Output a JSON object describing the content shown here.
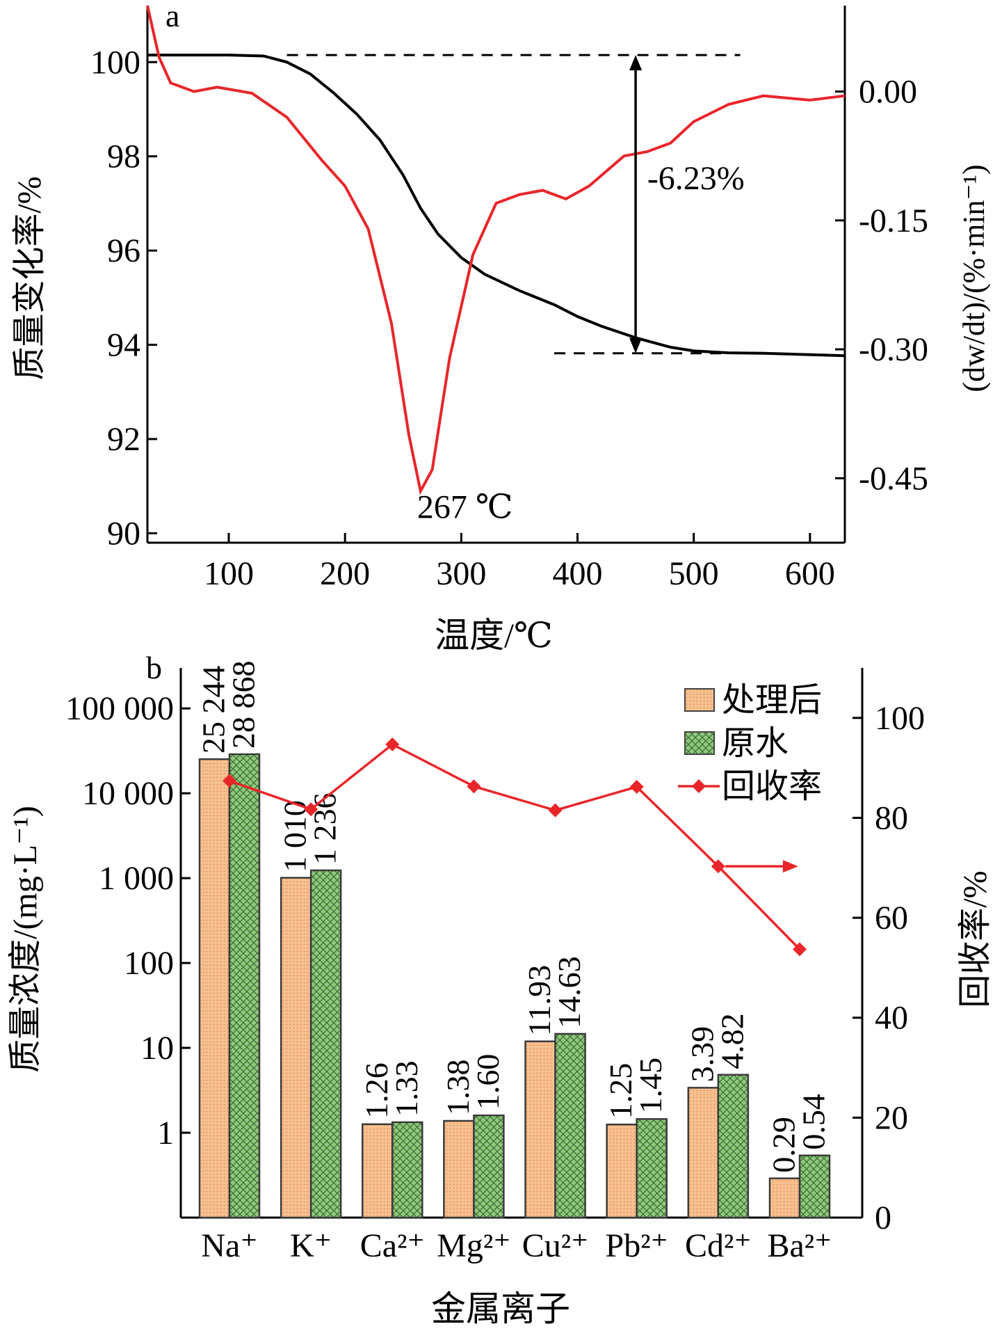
{
  "chart_data": [
    {
      "panel_label": "a",
      "type": "line",
      "xlabel": "温度/℃",
      "ylabel_left": "质量变化率/%",
      "ylabel_right": "(dw/dt)/(%·min⁻¹)",
      "xlim": [
        30,
        630
      ],
      "ylim_left": [
        89.8,
        101.2
      ],
      "ylim_right": [
        -0.525,
        0.1
      ],
      "x_ticks": [
        100,
        200,
        300,
        400,
        500,
        600
      ],
      "y_ticks_left": [
        90,
        92,
        94,
        96,
        98,
        100
      ],
      "y_ticks_right": [
        0.0,
        -0.15,
        -0.3,
        -0.45
      ],
      "y_tick_labels_right": [
        "0.00",
        "-0.15",
        "-0.30",
        "-0.45"
      ],
      "series": [
        {
          "axis": "left",
          "color": "#000000",
          "points": [
            [
              30,
              100.15
            ],
            [
              60,
              100.15
            ],
            [
              100,
              100.15
            ],
            [
              130,
              100.13
            ],
            [
              150,
              100.0
            ],
            [
              170,
              99.75
            ],
            [
              190,
              99.35
            ],
            [
              210,
              98.9
            ],
            [
              230,
              98.35
            ],
            [
              250,
              97.6
            ],
            [
              265,
              96.9
            ],
            [
              280,
              96.35
            ],
            [
              300,
              95.85
            ],
            [
              320,
              95.5
            ],
            [
              350,
              95.15
            ],
            [
              380,
              94.85
            ],
            [
              400,
              94.6
            ],
            [
              420,
              94.4
            ],
            [
              450,
              94.15
            ],
            [
              480,
              93.95
            ],
            [
              500,
              93.87
            ],
            [
              530,
              93.83
            ],
            [
              560,
              93.82
            ],
            [
              600,
              93.79
            ],
            [
              630,
              93.77
            ]
          ]
        },
        {
          "axis": "right",
          "color": "#e8262a",
          "points": [
            [
              30,
              0.1
            ],
            [
              40,
              0.04
            ],
            [
              50,
              0.01
            ],
            [
              70,
              0.0
            ],
            [
              90,
              0.005
            ],
            [
              120,
              -0.002
            ],
            [
              150,
              -0.03
            ],
            [
              180,
              -0.08
            ],
            [
              200,
              -0.11
            ],
            [
              220,
              -0.16
            ],
            [
              240,
              -0.27
            ],
            [
              255,
              -0.4
            ],
            [
              265,
              -0.465
            ],
            [
              275,
              -0.44
            ],
            [
              290,
              -0.31
            ],
            [
              310,
              -0.19
            ],
            [
              330,
              -0.13
            ],
            [
              350,
              -0.12
            ],
            [
              370,
              -0.115
            ],
            [
              390,
              -0.125
            ],
            [
              410,
              -0.11
            ],
            [
              440,
              -0.075
            ],
            [
              460,
              -0.07
            ],
            [
              480,
              -0.06
            ],
            [
              500,
              -0.035
            ],
            [
              530,
              -0.015
            ],
            [
              560,
              -0.005
            ],
            [
              600,
              -0.01
            ],
            [
              630,
              -0.005
            ]
          ]
        }
      ],
      "reference_lines": [
        {
          "axis": "left",
          "y": 100.15,
          "x_from": 150,
          "x_to": 540
        },
        {
          "axis": "left",
          "y": 93.82,
          "x_from": 380,
          "x_to": 530
        }
      ],
      "arrow": {
        "x": 450,
        "y_from": 100.15,
        "y_to": 93.82
      },
      "annotations": [
        {
          "id": "mass_loss",
          "text": "-6.23%",
          "x": 460,
          "y": 97.3,
          "axis": "left"
        },
        {
          "id": "peak_temp",
          "text": "267 ℃",
          "x": 265,
          "y": 90.5,
          "axis": "left"
        }
      ]
    },
    {
      "panel_label": "b",
      "type": "bar",
      "xlabel": "金属离子",
      "ylabel_left": "质量浓度/(mg·L⁻¹)",
      "ylabel_right": "回收率/%",
      "y_scale_left": "log",
      "ylim_left": [
        0.1,
        300000
      ],
      "ylim_right": [
        0,
        110
      ],
      "y_ticks_left": [
        1,
        10,
        100,
        1000,
        10000,
        100000
      ],
      "y_tick_labels_left": [
        "1",
        "10",
        "100",
        "1 000",
        "10 000",
        "100 000"
      ],
      "y_ticks_right": [
        0,
        20,
        40,
        60,
        80,
        100
      ],
      "categories": [
        "Na⁺",
        "K⁺",
        "Ca²⁺",
        "Mg²⁺",
        "Cu²⁺",
        "Pb²⁺",
        "Cd²⁺",
        "Ba²⁺"
      ],
      "series": [
        {
          "name": "处理后",
          "kind": "bar",
          "color": "#f7c08e",
          "values": [
            25244,
            1010,
            1.26,
            1.38,
            11.93,
            1.25,
            3.39,
            0.29
          ],
          "value_labels": [
            "25 244",
            "1 010",
            "1.26",
            "1.38",
            "11.93",
            "1.25",
            "3.39",
            "0.29"
          ]
        },
        {
          "name": "原水",
          "kind": "bar",
          "color": "#8ec97c",
          "values": [
            28868,
            1236,
            1.33,
            1.6,
            14.63,
            1.45,
            4.82,
            0.54
          ],
          "value_labels": [
            "28 868",
            "1 236",
            "1.33",
            "1.60",
            "14.63",
            "1.45",
            "4.82",
            "0.54"
          ]
        },
        {
          "name": "回收率",
          "kind": "line",
          "axis": "right",
          "color": "#e8262a",
          "values": [
            87.4,
            81.7,
            94.7,
            86.3,
            81.5,
            86.2,
            70.3,
            53.7
          ]
        }
      ],
      "legend_position": "top-right",
      "arrow": {
        "from_category": "Cd²⁺",
        "direction": "right",
        "y": 70.3
      }
    }
  ]
}
